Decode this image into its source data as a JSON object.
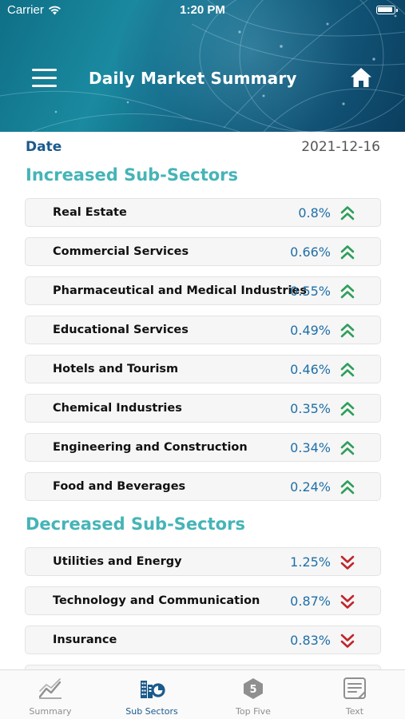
{
  "status_bar": {
    "carrier": "Carrier",
    "time": "1:20 PM"
  },
  "header": {
    "title": "Daily Market Summary",
    "menu_icon": "hamburger-menu-icon",
    "home_icon": "home-icon"
  },
  "date_row": {
    "label": "Date",
    "value": "2021-12-16"
  },
  "increased": {
    "title": "Increased Sub-Sectors",
    "arrow_icon": "double-chevron-up-icon",
    "color": "#2e9e5b",
    "items": [
      {
        "name": "Real Estate",
        "change": "0.8%"
      },
      {
        "name": "Commercial Services",
        "change": "0.66%"
      },
      {
        "name": "Pharmaceutical and Medical Industries",
        "change": "0.55%"
      },
      {
        "name": "Educational Services",
        "change": "0.49%"
      },
      {
        "name": "Hotels and Tourism",
        "change": "0.46%"
      },
      {
        "name": "Chemical Industries",
        "change": "0.35%"
      },
      {
        "name": "Engineering and Construction",
        "change": "0.34%"
      },
      {
        "name": "Food and Beverages",
        "change": "0.24%"
      }
    ]
  },
  "decreased": {
    "title": "Decreased Sub-Sectors",
    "arrow_icon": "double-chevron-down-icon",
    "color": "#c0262c",
    "items": [
      {
        "name": "Utilities and Energy",
        "change": "1.25%"
      },
      {
        "name": "Technology and Communication",
        "change": "0.87%"
      },
      {
        "name": "Insurance",
        "change": "0.83%"
      }
    ]
  },
  "tabbar": {
    "active_color": "#1b5a8c",
    "inactive_color": "#8f8f8f",
    "tabs": [
      {
        "label": "Summary",
        "icon": "line-chart-icon",
        "active": false
      },
      {
        "label": "Sub Sectors",
        "icon": "buildings-pie-icon",
        "active": true
      },
      {
        "label": "Top Five",
        "icon": "top-five-badge-icon",
        "badge": "5",
        "active": false
      },
      {
        "label": "Text",
        "icon": "document-text-icon",
        "active": false
      }
    ]
  }
}
